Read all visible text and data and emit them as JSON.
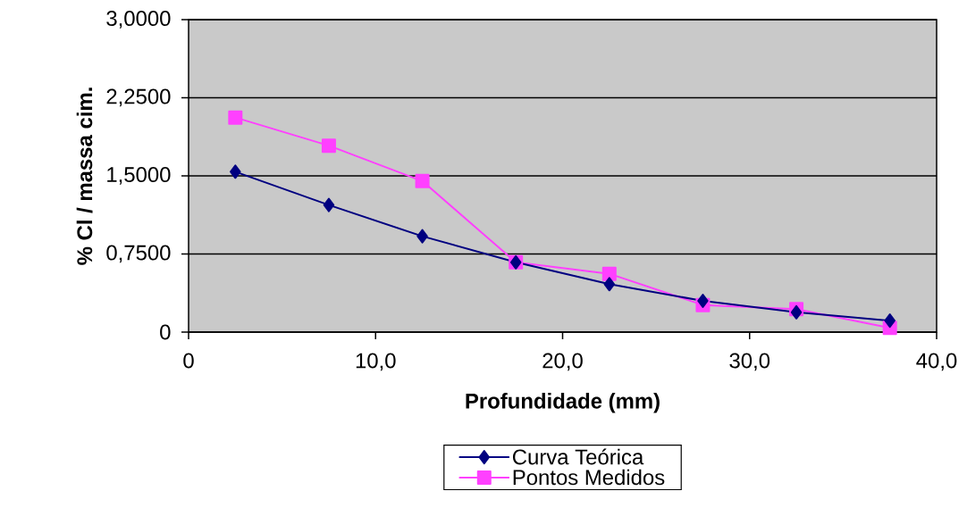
{
  "chart_data": {
    "type": "line",
    "xlabel": "Profundidade (mm)",
    "ylabel": "% Cl / massa cim.",
    "x": [
      2.5,
      7.5,
      12.5,
      17.5,
      22.5,
      27.5,
      32.5,
      37.5
    ],
    "series": [
      {
        "name": "Curva Teórica",
        "color": "#000080",
        "marker": "diamond",
        "values": [
          1.54,
          1.22,
          0.92,
          0.67,
          0.46,
          0.3,
          0.19,
          0.11
        ]
      },
      {
        "name": "Pontos Medidos",
        "color": "#ff40ff",
        "marker": "square",
        "values": [
          2.06,
          1.79,
          1.45,
          0.67,
          0.56,
          0.26,
          0.22,
          0.04
        ]
      }
    ],
    "xlim": [
      0,
      40
    ],
    "xticks": [
      0,
      {
        "value": 10,
        "label": "10,0"
      },
      {
        "value": 20,
        "label": "20,0"
      },
      {
        "value": 30,
        "label": "30,0"
      },
      {
        "value": 40,
        "label": "40,0"
      }
    ],
    "ylim": [
      0,
      3
    ],
    "yticks": [
      0,
      {
        "value": 0.75,
        "label": "0,7500"
      },
      {
        "value": 1.5,
        "label": "1,5000"
      },
      {
        "value": 2.25,
        "label": "2,2500"
      },
      {
        "value": 3,
        "label": "3,0000"
      }
    ],
    "grid": "y",
    "legend": "bottom",
    "line_style": "solid"
  }
}
